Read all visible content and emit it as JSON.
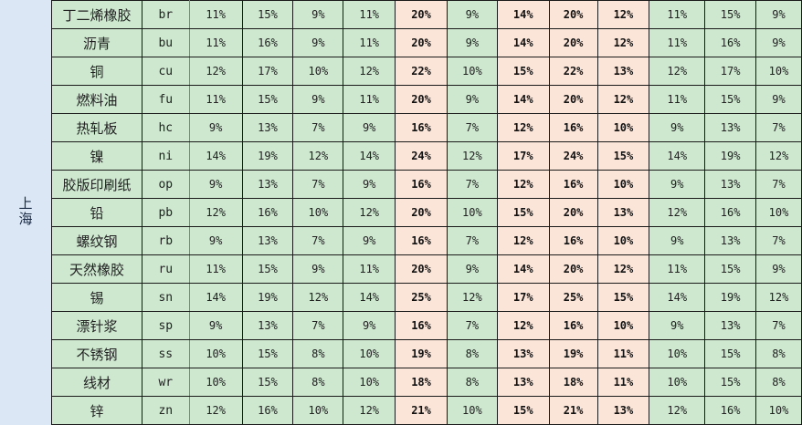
{
  "region": "上海",
  "colors": {
    "green_cell": "#cde8cf",
    "pink_cell": "#fbe4d8",
    "region_bg": "#dbe7f4"
  },
  "highlight_columns": [
    4,
    6,
    7,
    8
  ],
  "rows": [
    {
      "name": "丁二烯橡胶",
      "code": "br",
      "values": [
        "11%",
        "15%",
        "9%",
        "11%",
        "20%",
        "9%",
        "14%",
        "20%",
        "12%",
        "11%",
        "15%",
        "9%"
      ]
    },
    {
      "name": "沥青",
      "code": "bu",
      "values": [
        "11%",
        "16%",
        "9%",
        "11%",
        "20%",
        "9%",
        "14%",
        "20%",
        "12%",
        "11%",
        "16%",
        "9%"
      ]
    },
    {
      "name": "铜",
      "code": "cu",
      "values": [
        "12%",
        "17%",
        "10%",
        "12%",
        "22%",
        "10%",
        "15%",
        "22%",
        "13%",
        "12%",
        "17%",
        "10%"
      ]
    },
    {
      "name": "燃料油",
      "code": "fu",
      "values": [
        "11%",
        "15%",
        "9%",
        "11%",
        "20%",
        "9%",
        "14%",
        "20%",
        "12%",
        "11%",
        "15%",
        "9%"
      ]
    },
    {
      "name": "热轧板",
      "code": "hc",
      "values": [
        "9%",
        "13%",
        "7%",
        "9%",
        "16%",
        "7%",
        "12%",
        "16%",
        "10%",
        "9%",
        "13%",
        "7%"
      ]
    },
    {
      "name": "镍",
      "code": "ni",
      "values": [
        "14%",
        "19%",
        "12%",
        "14%",
        "24%",
        "12%",
        "17%",
        "24%",
        "15%",
        "14%",
        "19%",
        "12%"
      ]
    },
    {
      "name": "胶版印刷纸",
      "code": "op",
      "values": [
        "9%",
        "13%",
        "7%",
        "9%",
        "16%",
        "7%",
        "12%",
        "16%",
        "10%",
        "9%",
        "13%",
        "7%"
      ]
    },
    {
      "name": "铅",
      "code": "pb",
      "values": [
        "12%",
        "16%",
        "10%",
        "12%",
        "20%",
        "10%",
        "15%",
        "20%",
        "13%",
        "12%",
        "16%",
        "10%"
      ]
    },
    {
      "name": "螺纹钢",
      "code": "rb",
      "values": [
        "9%",
        "13%",
        "7%",
        "9%",
        "16%",
        "7%",
        "12%",
        "16%",
        "10%",
        "9%",
        "13%",
        "7%"
      ]
    },
    {
      "name": "天然橡胶",
      "code": "ru",
      "values": [
        "11%",
        "15%",
        "9%",
        "11%",
        "20%",
        "9%",
        "14%",
        "20%",
        "12%",
        "11%",
        "15%",
        "9%"
      ]
    },
    {
      "name": "锡",
      "code": "sn",
      "values": [
        "14%",
        "19%",
        "12%",
        "14%",
        "25%",
        "12%",
        "17%",
        "25%",
        "15%",
        "14%",
        "19%",
        "12%"
      ]
    },
    {
      "name": "漂针浆",
      "code": "sp",
      "values": [
        "9%",
        "13%",
        "7%",
        "9%",
        "16%",
        "7%",
        "12%",
        "16%",
        "10%",
        "9%",
        "13%",
        "7%"
      ]
    },
    {
      "name": "不锈钢",
      "code": "ss",
      "values": [
        "10%",
        "15%",
        "8%",
        "10%",
        "19%",
        "8%",
        "13%",
        "19%",
        "11%",
        "10%",
        "15%",
        "8%"
      ]
    },
    {
      "name": "线材",
      "code": "wr",
      "values": [
        "10%",
        "15%",
        "8%",
        "10%",
        "18%",
        "8%",
        "13%",
        "18%",
        "11%",
        "10%",
        "15%",
        "8%"
      ]
    },
    {
      "name": "锌",
      "code": "zn",
      "values": [
        "12%",
        "16%",
        "10%",
        "12%",
        "21%",
        "10%",
        "15%",
        "21%",
        "13%",
        "12%",
        "16%",
        "10%"
      ]
    }
  ]
}
